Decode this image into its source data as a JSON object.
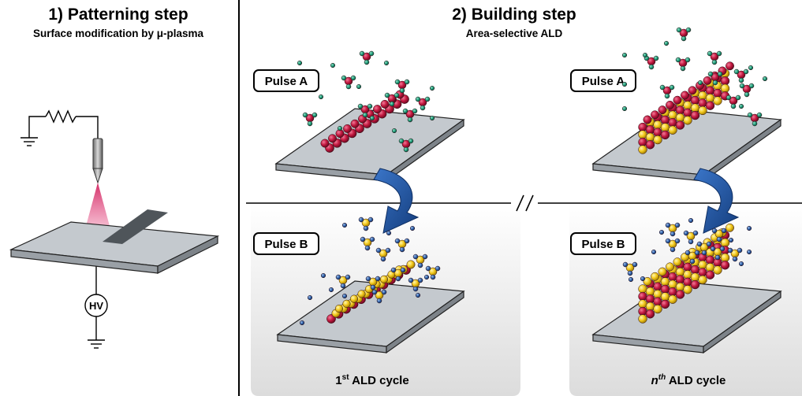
{
  "step1": {
    "title": "1) Patterning step",
    "subtitle": "Surface modification by μ-plasma",
    "hv_label": "HV"
  },
  "step2": {
    "title": "2) Building step",
    "subtitle": "Area-selective ALD"
  },
  "panels": [
    {
      "pulse": "Pulse A"
    },
    {
      "pulse": "Pulse A"
    },
    {
      "pulse": "Pulse B",
      "cycle": "1",
      "cycle_sup": "st",
      "cycle_rest": " ALD cycle"
    },
    {
      "pulse": "Pulse B",
      "cycle": "n",
      "cycle_sup": "th",
      "cycle_rest": " ALD cycle"
    }
  ],
  "colors": {
    "red_atom": "#c2183f",
    "yellow_atom": "#f2c81b",
    "teal_atom": "#1f9a78",
    "blue_atom": "#2e5fa6",
    "arrow": "#1f4f98",
    "substrate": "#b9bec4",
    "plasma": "#e0457e"
  }
}
